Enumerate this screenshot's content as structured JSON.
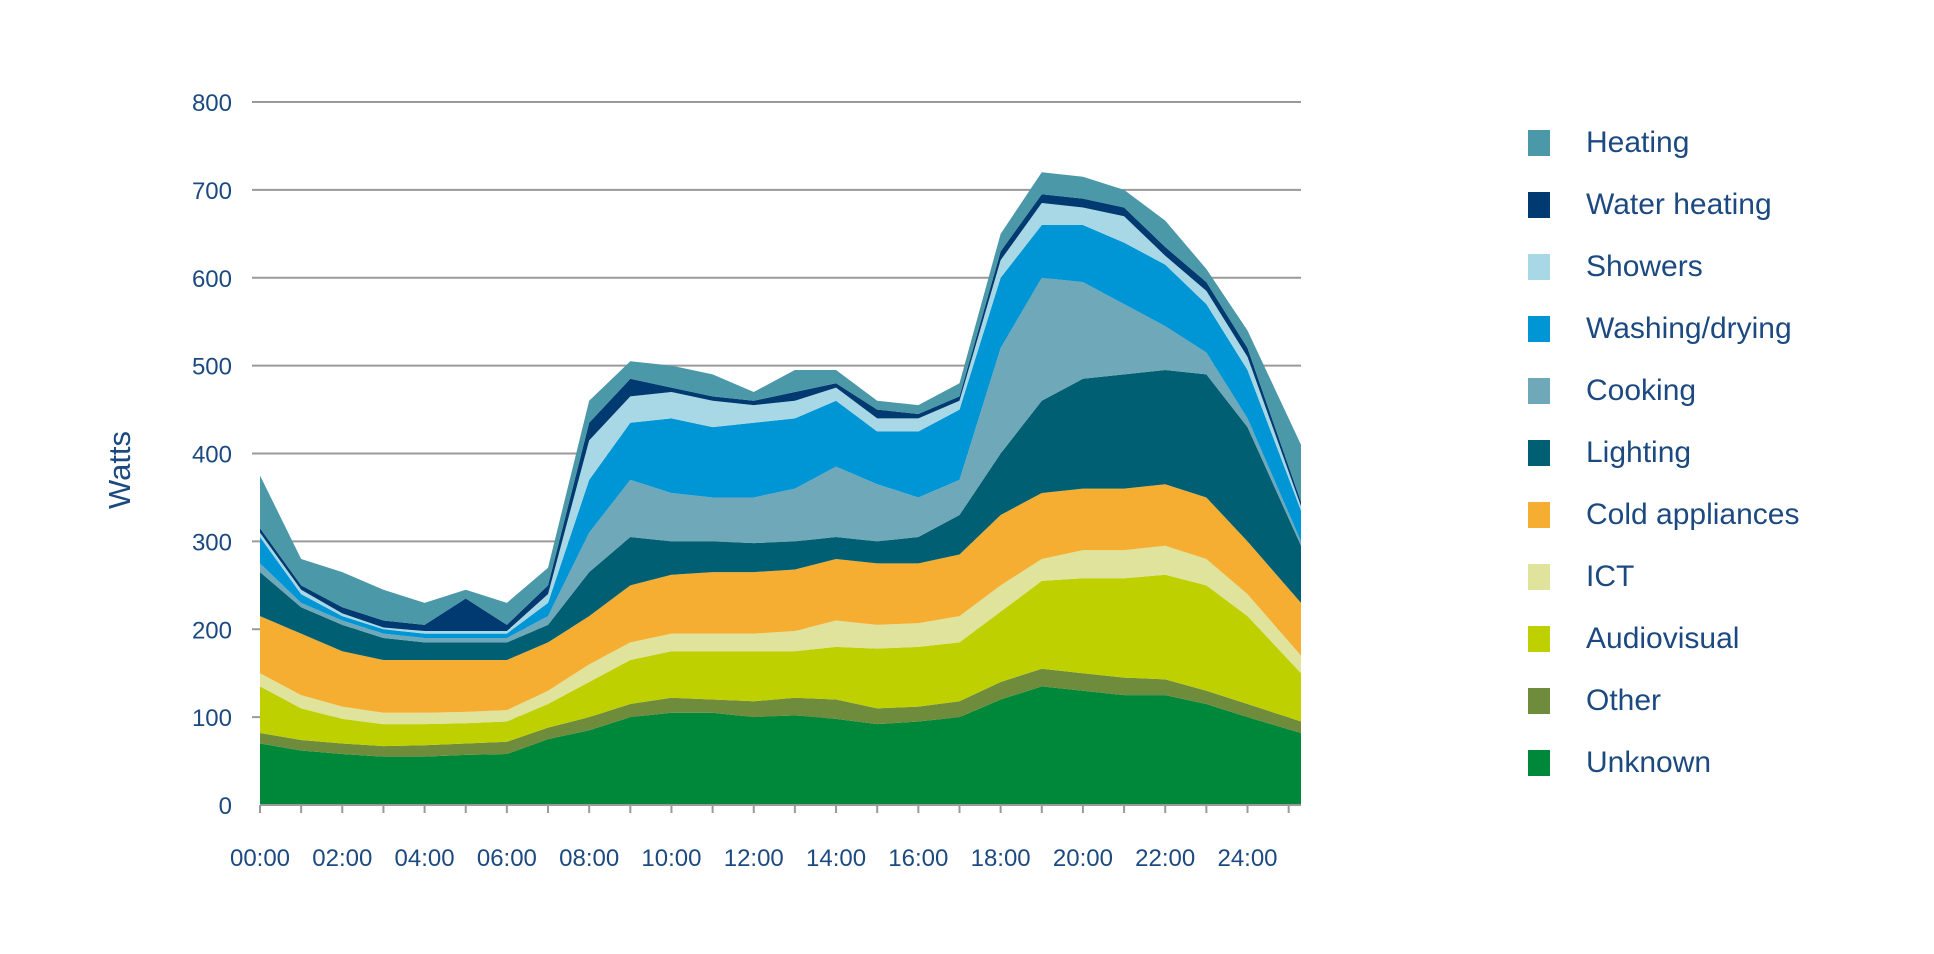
{
  "chart_data": {
    "type": "area",
    "stacked": true,
    "title": "",
    "xlabel": "",
    "ylabel": "Watts",
    "xlim": [
      0,
      25.3
    ],
    "ylim": [
      0,
      800
    ],
    "yticks": [
      0,
      100,
      200,
      300,
      400,
      500,
      600,
      700,
      800
    ],
    "xtick_labels": [
      "00:00",
      "02:00",
      "04:00",
      "06:00",
      "08:00",
      "10:00",
      "12:00",
      "14:00",
      "16:00",
      "18:00",
      "20:00",
      "22:00",
      "24:00"
    ],
    "grid": true,
    "legend_position": "right",
    "x_hours": [
      0,
      1,
      2,
      3,
      4,
      5,
      6,
      7,
      8,
      9,
      10,
      11,
      12,
      13,
      14,
      15,
      16,
      17,
      18,
      19,
      20,
      21,
      22,
      23,
      24,
      25.3
    ],
    "series": [
      {
        "name": "Unknown",
        "color": "#00883a",
        "values": [
          70,
          62,
          58,
          55,
          55,
          57,
          58,
          75,
          85,
          100,
          105,
          105,
          100,
          102,
          98,
          92,
          95,
          100,
          120,
          135,
          130,
          125,
          125,
          115,
          100,
          82
        ]
      },
      {
        "name": "Other",
        "color": "#6f8c3c",
        "values": [
          12,
          12,
          12,
          12,
          13,
          13,
          14,
          13,
          15,
          15,
          17,
          15,
          18,
          20,
          22,
          18,
          17,
          18,
          20,
          20,
          20,
          20,
          18,
          15,
          15,
          13
        ]
      },
      {
        "name": "Audiovisual",
        "color": "#bfd000",
        "values": [
          53,
          36,
          28,
          25,
          24,
          23,
          23,
          27,
          40,
          50,
          53,
          55,
          57,
          53,
          60,
          68,
          68,
          67,
          80,
          100,
          108,
          113,
          119,
          120,
          100,
          55
        ]
      },
      {
        "name": "ICT",
        "color": "#dfe39b",
        "values": [
          15,
          15,
          14,
          13,
          13,
          13,
          13,
          15,
          20,
          20,
          20,
          20,
          20,
          23,
          30,
          27,
          27,
          30,
          30,
          25,
          32,
          32,
          33,
          30,
          25,
          20
        ]
      },
      {
        "name": "Cold appliances",
        "color": "#f5ae32",
        "values": [
          65,
          70,
          63,
          60,
          60,
          59,
          57,
          55,
          55,
          65,
          67,
          70,
          70,
          70,
          70,
          70,
          68,
          70,
          80,
          75,
          70,
          70,
          70,
          70,
          60,
          60
        ]
      },
      {
        "name": "Lighting",
        "color": "#005f73",
        "values": [
          50,
          30,
          30,
          25,
          20,
          20,
          20,
          20,
          50,
          55,
          38,
          35,
          33,
          32,
          25,
          25,
          30,
          45,
          70,
          105,
          125,
          130,
          130,
          140,
          130,
          65
        ]
      },
      {
        "name": "Cooking",
        "color": "#6fa8b8",
        "values": [
          10,
          5,
          5,
          5,
          5,
          5,
          5,
          10,
          45,
          65,
          55,
          50,
          52,
          60,
          80,
          65,
          45,
          40,
          120,
          140,
          110,
          80,
          50,
          25,
          10,
          5
        ]
      },
      {
        "name": "Washing/drying",
        "color": "#0096d6",
        "values": [
          30,
          10,
          5,
          5,
          5,
          5,
          5,
          15,
          60,
          65,
          85,
          80,
          85,
          80,
          75,
          60,
          75,
          80,
          80,
          60,
          65,
          70,
          70,
          55,
          55,
          35
        ]
      },
      {
        "name": "Showers",
        "color": "#a8d8e6",
        "values": [
          5,
          5,
          3,
          2,
          3,
          3,
          3,
          10,
          45,
          30,
          30,
          30,
          20,
          20,
          15,
          15,
          15,
          10,
          20,
          25,
          20,
          30,
          10,
          15,
          15,
          5
        ]
      },
      {
        "name": "Water heating",
        "color": "#003a70",
        "values": [
          5,
          5,
          7,
          8,
          7,
          37,
          7,
          10,
          20,
          20,
          5,
          5,
          5,
          10,
          5,
          10,
          5,
          5,
          10,
          10,
          10,
          10,
          10,
          10,
          10,
          5
        ]
      },
      {
        "name": "Heating",
        "color": "#4a98a8",
        "values": [
          60,
          30,
          40,
          35,
          25,
          10,
          25,
          20,
          25,
          20,
          25,
          25,
          10,
          25,
          15,
          10,
          10,
          15,
          20,
          25,
          25,
          20,
          30,
          15,
          20,
          65
        ]
      }
    ]
  }
}
